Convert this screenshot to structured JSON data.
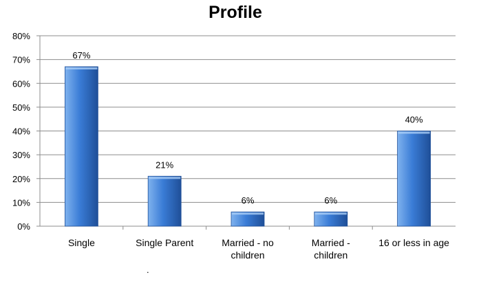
{
  "colors": {
    "bar_light": "#7fb2ee",
    "bar_mid": "#3a7cd6",
    "bar_dark": "#1f4f98",
    "gridline": "#8c8c8c"
  },
  "chart_data": {
    "type": "bar",
    "title": "Profile",
    "categories": [
      "Single",
      "Single Parent",
      "Married - no children",
      "Married - children",
      "16 or less in age"
    ],
    "category_lines": [
      [
        "Single"
      ],
      [
        "Single Parent"
      ],
      [
        "Married - no",
        "children"
      ],
      [
        "Married -",
        "children"
      ],
      [
        "16 or less in age"
      ]
    ],
    "values": [
      67,
      21,
      6,
      6,
      40
    ],
    "data_labels": [
      "67%",
      "21%",
      "6%",
      "6%",
      "40%"
    ],
    "ylim": [
      0,
      80
    ],
    "yticks": [
      0,
      10,
      20,
      30,
      40,
      50,
      60,
      70,
      80
    ],
    "ytick_labels": [
      "0%",
      "10%",
      "20%",
      "30%",
      "40%",
      "50%",
      "60%",
      "70%",
      "80%"
    ],
    "xlabel": "",
    "ylabel": "",
    "grid": true,
    "legend": "none"
  }
}
